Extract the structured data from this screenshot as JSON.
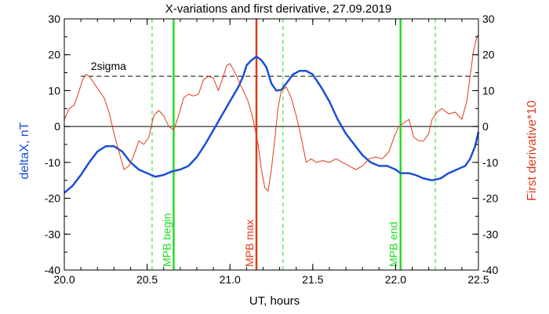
{
  "chart_data": {
    "type": "line",
    "title": "X-variations and first derivative, 27.09.2019",
    "xlabel": "UT, hours",
    "ylabel_left": "deltaX, nT",
    "ylabel_right": "First derivative*10",
    "xlim": [
      20.0,
      22.5
    ],
    "ylim": [
      -40,
      30
    ],
    "x_ticks": [
      "20.0",
      "20.5",
      "21.0",
      "21.5",
      "22.0",
      "22.5"
    ],
    "x_tick_values": [
      20.0,
      20.5,
      21.0,
      21.5,
      22.0,
      22.5
    ],
    "y_ticks": [
      -40,
      -30,
      -20,
      -10,
      0,
      10,
      20,
      30
    ],
    "y_ticks_right": [
      -40,
      -30,
      -20,
      -10,
      0,
      10,
      20,
      30
    ],
    "sigma_level": 14,
    "sigma_label": "2sigma",
    "zero_line": 0,
    "series": [
      {
        "name": "deltaX",
        "color": "#1a4fd6",
        "points": [
          [
            20.0,
            -18.5
          ],
          [
            20.05,
            -16.5
          ],
          [
            20.1,
            -13.5
          ],
          [
            20.15,
            -10
          ],
          [
            20.2,
            -7
          ],
          [
            20.25,
            -5.5
          ],
          [
            20.3,
            -5.5
          ],
          [
            20.35,
            -7
          ],
          [
            20.4,
            -10
          ],
          [
            20.45,
            -12
          ],
          [
            20.5,
            -13
          ],
          [
            20.55,
            -14
          ],
          [
            20.6,
            -13.5
          ],
          [
            20.65,
            -12.5
          ],
          [
            20.7,
            -12
          ],
          [
            20.75,
            -11
          ],
          [
            20.8,
            -8.5
          ],
          [
            20.85,
            -5
          ],
          [
            20.9,
            -1
          ],
          [
            20.95,
            3
          ],
          [
            21.0,
            7
          ],
          [
            21.05,
            11
          ],
          [
            21.08,
            14
          ],
          [
            21.1,
            17
          ],
          [
            21.13,
            18.5
          ],
          [
            21.16,
            19.5
          ],
          [
            21.19,
            18.5
          ],
          [
            21.22,
            16.5
          ],
          [
            21.25,
            12
          ],
          [
            21.28,
            10
          ],
          [
            21.31,
            10.2
          ],
          [
            21.34,
            12
          ],
          [
            21.38,
            14.5
          ],
          [
            21.42,
            15.5
          ],
          [
            21.46,
            15.5
          ],
          [
            21.5,
            14.5
          ],
          [
            21.55,
            11
          ],
          [
            21.6,
            7
          ],
          [
            21.65,
            2
          ],
          [
            21.7,
            -2
          ],
          [
            21.75,
            -5
          ],
          [
            21.8,
            -8
          ],
          [
            21.85,
            -10
          ],
          [
            21.9,
            -11
          ],
          [
            21.95,
            -11
          ],
          [
            22.0,
            -12
          ],
          [
            22.03,
            -13
          ],
          [
            22.08,
            -13
          ],
          [
            22.12,
            -13.5
          ],
          [
            22.17,
            -14.5
          ],
          [
            22.22,
            -15
          ],
          [
            22.27,
            -14.5
          ],
          [
            22.32,
            -13
          ],
          [
            22.37,
            -12
          ],
          [
            22.42,
            -11
          ],
          [
            22.45,
            -9
          ],
          [
            22.48,
            -5.5
          ],
          [
            22.5,
            -1.5
          ]
        ]
      },
      {
        "name": "First derivative*10",
        "color": "#e03a1a",
        "points": [
          [
            20.0,
            2
          ],
          [
            20.03,
            5
          ],
          [
            20.06,
            6
          ],
          [
            20.09,
            10
          ],
          [
            20.11,
            13
          ],
          [
            20.13,
            14.5
          ],
          [
            20.15,
            14
          ],
          [
            20.18,
            12
          ],
          [
            20.21,
            10
          ],
          [
            20.24,
            8
          ],
          [
            20.27,
            4
          ],
          [
            20.3,
            -2
          ],
          [
            20.33,
            -7
          ],
          [
            20.36,
            -12
          ],
          [
            20.39,
            -11
          ],
          [
            20.42,
            -8
          ],
          [
            20.45,
            -4
          ],
          [
            20.48,
            -5
          ],
          [
            20.51,
            -3
          ],
          [
            20.54,
            3
          ],
          [
            20.57,
            4.5
          ],
          [
            20.6,
            3
          ],
          [
            20.63,
            0
          ],
          [
            20.66,
            -1
          ],
          [
            20.69,
            3
          ],
          [
            20.72,
            8
          ],
          [
            20.75,
            9
          ],
          [
            20.78,
            8.5
          ],
          [
            20.81,
            9
          ],
          [
            20.84,
            13
          ],
          [
            20.87,
            14
          ],
          [
            20.9,
            13.5
          ],
          [
            20.93,
            10
          ],
          [
            20.96,
            14
          ],
          [
            20.98,
            17
          ],
          [
            21.0,
            17.5
          ],
          [
            21.02,
            16
          ],
          [
            21.05,
            13
          ],
          [
            21.08,
            10
          ],
          [
            21.11,
            7
          ],
          [
            21.14,
            2
          ],
          [
            21.17,
            -5
          ],
          [
            21.19,
            -12
          ],
          [
            21.21,
            -17
          ],
          [
            21.23,
            -18
          ],
          [
            21.25,
            -12
          ],
          [
            21.27,
            -4
          ],
          [
            21.29,
            5
          ],
          [
            21.31,
            10
          ],
          [
            21.34,
            11
          ],
          [
            21.37,
            8
          ],
          [
            21.4,
            3
          ],
          [
            21.43,
            -3
          ],
          [
            21.46,
            -10
          ],
          [
            21.49,
            -9
          ],
          [
            21.52,
            -10
          ],
          [
            21.56,
            -9.5
          ],
          [
            21.6,
            -10
          ],
          [
            21.64,
            -9
          ],
          [
            21.68,
            -10
          ],
          [
            21.72,
            -11
          ],
          [
            21.76,
            -12
          ],
          [
            21.8,
            -11
          ],
          [
            21.84,
            -9
          ],
          [
            21.88,
            -8.5
          ],
          [
            21.92,
            -9
          ],
          [
            21.96,
            -7
          ],
          [
            21.99,
            -3
          ],
          [
            22.02,
            0
          ],
          [
            22.05,
            1
          ],
          [
            22.08,
            2
          ],
          [
            22.11,
            -3
          ],
          [
            22.14,
            -4
          ],
          [
            22.17,
            -4
          ],
          [
            22.2,
            -2
          ],
          [
            22.22,
            2
          ],
          [
            22.25,
            4
          ],
          [
            22.28,
            5
          ],
          [
            22.32,
            3.5
          ],
          [
            22.36,
            4
          ],
          [
            22.4,
            2
          ],
          [
            22.43,
            7
          ],
          [
            22.45,
            14
          ],
          [
            22.47,
            21
          ],
          [
            22.49,
            25
          ],
          [
            22.5,
            25.5
          ]
        ]
      }
    ],
    "markers": [
      {
        "x": 20.53,
        "color": "#22dd22",
        "style": "dashed",
        "label": ""
      },
      {
        "x": 20.66,
        "color": "#22dd22",
        "style": "solid",
        "label": "MPB begin"
      },
      {
        "x": 21.16,
        "color": "#e03a1a",
        "style": "solid",
        "label": "MPB max"
      },
      {
        "x": 21.32,
        "color": "#22dd22",
        "style": "dashed",
        "label": ""
      },
      {
        "x": 22.03,
        "color": "#22dd22",
        "style": "solid",
        "label": "MPB end"
      },
      {
        "x": 22.24,
        "color": "#22dd22",
        "style": "dashed",
        "label": ""
      }
    ],
    "grid": false,
    "legend": "none"
  }
}
